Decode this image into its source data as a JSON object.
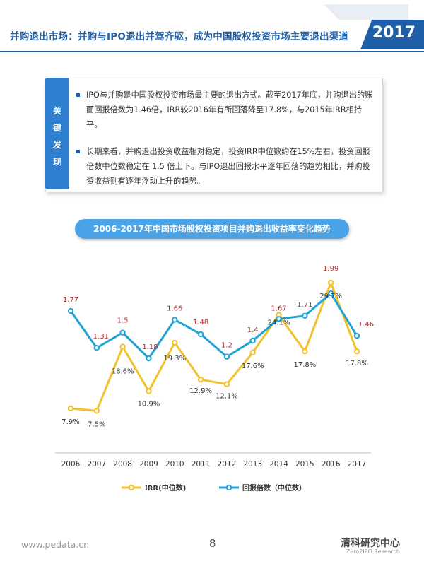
{
  "header": {
    "title": "并购退出市场：并购与IPO退出并驾齐驱，成为中国股权投资市场主要退出渠道",
    "year": "2017"
  },
  "key_findings": {
    "tag_chars": [
      "关",
      "键",
      "发",
      "现"
    ],
    "items": [
      "IPO与并购是中国股权投资市场最主要的退出方式。截至2017年底，并购退出的账面回报倍数为1.46倍，IRR较2016年有所回落降至17.8%，与2015年IRR相持平。",
      "长期来看，并购退出投资收益相对稳定，投资IRR中位数约在15%左右，投资回报倍数中位数稳定在 1.5 倍上下。与IPO退出回报水平逐年回落的趋势相比，并购投资收益则有逐年浮动上升的趋势。"
    ]
  },
  "chart_title": "2006-2017年中国市场股权投资项目并购退出收益率变化趋势",
  "chart_data": {
    "type": "line",
    "title": "2006-2017年中国市场股权投资项目并购退出收益率变化趋势",
    "x": [
      "2006",
      "2007",
      "2008",
      "2009",
      "2010",
      "2011",
      "2012",
      "2013",
      "2014",
      "2015",
      "2016",
      "2017"
    ],
    "series": [
      {
        "name": "IRR(中位数)",
        "values": [
          7.9,
          7.5,
          18.6,
          10.9,
          19.3,
          12.9,
          12.1,
          17.6,
          24.1,
          17.8,
          29.7,
          17.8
        ],
        "labels": [
          "7.9%",
          "7.5%",
          "18.6%",
          "10.9%",
          "19.3%",
          "12.9%",
          "12.1%",
          "17.6%",
          "24.1%",
          "17.8%",
          "29.7%",
          "17.8%"
        ],
        "color": "#f2c12e"
      },
      {
        "name": "回报倍数（中位数）",
        "values": [
          1.77,
          1.31,
          1.5,
          1.18,
          1.66,
          1.48,
          1.2,
          1.4,
          1.67,
          1.71,
          1.99,
          1.46
        ],
        "labels": [
          "1.77",
          "1.31",
          "1.5",
          "1.18",
          "1.66",
          "1.48",
          "1.2",
          "1.4",
          "1.67",
          "1.71",
          "1.99",
          "1.46"
        ],
        "color": "#1fa3d6",
        "label_color": "#b22f2f"
      }
    ],
    "legend_position": "bottom",
    "grid": false
  },
  "footer": {
    "url": "www.pedata.cn",
    "page_number": "8",
    "brand": "清科研究中心",
    "brand_sub": "Zero2IPO Research"
  }
}
